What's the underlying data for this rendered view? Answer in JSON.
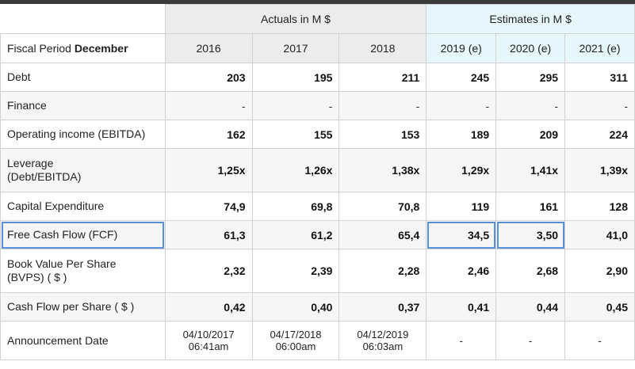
{
  "header": {
    "actuals_label": "Actuals in M $",
    "estimates_label": "Estimates in M $",
    "fiscal_prefix": "Fiscal Period ",
    "fiscal_month": "December",
    "years": [
      "2016",
      "2017",
      "2018",
      "2019 (e)",
      "2020 (e)",
      "2021 (e)"
    ]
  },
  "rows": [
    {
      "label": "Debt",
      "values": [
        "203",
        "195",
        "211",
        "245",
        "295",
        "311"
      ]
    },
    {
      "label": "Finance",
      "values": [
        "-",
        "-",
        "-",
        "-",
        "-",
        "-"
      ]
    },
    {
      "label": "Operating income (EBITDA)",
      "values": [
        "162",
        "155",
        "153",
        "189",
        "209",
        "224"
      ]
    },
    {
      "label": "Leverage\n(Debt/EBITDA)",
      "values": [
        "1,25x",
        "1,26x",
        "1,38x",
        "1,29x",
        "1,41x",
        "1,39x"
      ]
    },
    {
      "label": "Capital Expenditure",
      "values": [
        "74,9",
        "69,8",
        "70,8",
        "119",
        "161",
        "128"
      ]
    },
    {
      "label": "Free Cash Flow (FCF)",
      "values": [
        "61,3",
        "61,2",
        "65,4",
        "34,5",
        "3,50",
        "41,0"
      ]
    },
    {
      "label": "Book Value Per Share\n(BVPS) ( $ )",
      "values": [
        "2,32",
        "2,39",
        "2,28",
        "2,46",
        "2,68",
        "2,90"
      ]
    },
    {
      "label": "Cash Flow per Share ( $ )",
      "values": [
        "0,42",
        "0,40",
        "0,37",
        "0,41",
        "0,44",
        "0,45"
      ]
    },
    {
      "label": "Announcement Date",
      "values": [
        "04/10/2017\n06:41am",
        "04/17/2018\n06:00am",
        "04/12/2019\n06:03am",
        "-",
        "-",
        "-"
      ]
    }
  ]
}
